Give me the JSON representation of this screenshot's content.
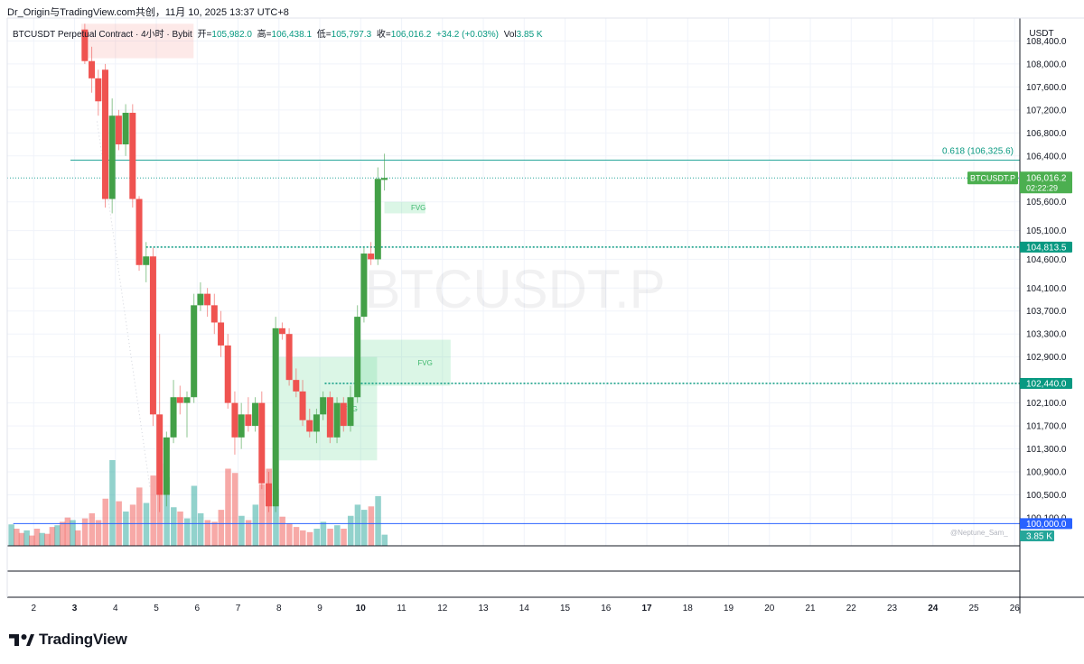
{
  "header": {
    "title": "Dr_Origin与TradingView.com共创，11月 10, 2025 13:37 UTC+8"
  },
  "legend": {
    "symbol": "BTCUSDT Perpetual Contract · 4小时 · Bybit",
    "open_label": "开=",
    "open": "105,982.0",
    "high_label": "高=",
    "high": "106,438.1",
    "low_label": "低=",
    "low": "105,797.3",
    "close_label": "收=",
    "close": "106,016.2",
    "change": "+34.2 (+0.03%)",
    "vol_label": "Vol",
    "vol": "3.85 K"
  },
  "watermark": "BTCUSDT.P",
  "credit": "@Neptune_Sam_",
  "logo": {
    "text": "TradingView"
  },
  "colors": {
    "up": "#26a69a",
    "down": "#ef5350",
    "fvg": "#4cd080",
    "support": "#089981",
    "round": "#2962ff"
  },
  "chart_data": {
    "type": "candlestick",
    "title": "BTCUSDT Perpetual Contract · 4小时 · Bybit",
    "y_unit": "USDT",
    "ylim": [
      99700,
      108700
    ],
    "y_ticks": [
      "108,400.0",
      "108,000.0",
      "107,600.0",
      "107,200.0",
      "106,800.0",
      "106,400.0",
      "105,600.0",
      "105,100.0",
      "104,600.0",
      "104,100.0",
      "103,700.0",
      "103,300.0",
      "102,900.0",
      "102,100.0",
      "101,700.0",
      "101,300.0",
      "100,900.0",
      "100,500.0",
      "100,100.0"
    ],
    "x_ticks": [
      {
        "label": "2",
        "bold": false
      },
      {
        "label": "3",
        "bold": true
      },
      {
        "label": "4",
        "bold": false
      },
      {
        "label": "5",
        "bold": false
      },
      {
        "label": "6",
        "bold": false
      },
      {
        "label": "7",
        "bold": false
      },
      {
        "label": "8",
        "bold": false
      },
      {
        "label": "9",
        "bold": false
      },
      {
        "label": "10",
        "bold": true
      },
      {
        "label": "11",
        "bold": false
      },
      {
        "label": "12",
        "bold": false
      },
      {
        "label": "13",
        "bold": false
      },
      {
        "label": "14",
        "bold": false
      },
      {
        "label": "15",
        "bold": false
      },
      {
        "label": "16",
        "bold": false
      },
      {
        "label": "17",
        "bold": true
      },
      {
        "label": "18",
        "bold": false
      },
      {
        "label": "19",
        "bold": false
      },
      {
        "label": "20",
        "bold": false
      },
      {
        "label": "21",
        "bold": false
      },
      {
        "label": "22",
        "bold": false
      },
      {
        "label": "23",
        "bold": false
      },
      {
        "label": "24",
        "bold": true
      },
      {
        "label": "25",
        "bold": false
      },
      {
        "label": "26",
        "bold": false
      }
    ],
    "candles": [
      {
        "t": 3.25,
        "o": 108600,
        "h": 108700,
        "l": 108000,
        "c": 108050
      },
      {
        "t": 3.42,
        "o": 108050,
        "h": 108300,
        "l": 107500,
        "c": 107750
      },
      {
        "t": 3.58,
        "o": 107750,
        "h": 107900,
        "l": 107100,
        "c": 107350
      },
      {
        "t": 3.75,
        "o": 107900,
        "h": 108000,
        "l": 105500,
        "c": 105650
      },
      {
        "t": 3.92,
        "o": 105650,
        "h": 107400,
        "l": 105400,
        "c": 107100
      },
      {
        "t": 4.08,
        "o": 107100,
        "h": 107200,
        "l": 106500,
        "c": 106600
      },
      {
        "t": 4.25,
        "o": 106600,
        "h": 107300,
        "l": 106400,
        "c": 107150
      },
      {
        "t": 4.42,
        "o": 107150,
        "h": 107300,
        "l": 105500,
        "c": 105650
      },
      {
        "t": 4.58,
        "o": 105650,
        "h": 105700,
        "l": 104400,
        "c": 104500
      },
      {
        "t": 4.75,
        "o": 104500,
        "h": 104900,
        "l": 104200,
        "c": 104650
      },
      {
        "t": 4.92,
        "o": 104650,
        "h": 104800,
        "l": 101700,
        "c": 101900
      },
      {
        "t": 5.08,
        "o": 101900,
        "h": 103300,
        "l": 100200,
        "c": 100500
      },
      {
        "t": 5.25,
        "o": 100500,
        "h": 101600,
        "l": 100300,
        "c": 101500
      },
      {
        "t": 5.42,
        "o": 101500,
        "h": 102500,
        "l": 101400,
        "c": 102200
      },
      {
        "t": 5.58,
        "o": 102200,
        "h": 102400,
        "l": 101900,
        "c": 102100
      },
      {
        "t": 5.75,
        "o": 102100,
        "h": 102300,
        "l": 101500,
        "c": 102200
      },
      {
        "t": 5.92,
        "o": 102200,
        "h": 104000,
        "l": 102100,
        "c": 103800
      },
      {
        "t": 6.08,
        "o": 103800,
        "h": 104200,
        "l": 103700,
        "c": 104000
      },
      {
        "t": 6.25,
        "o": 104000,
        "h": 104100,
        "l": 103600,
        "c": 103800
      },
      {
        "t": 6.42,
        "o": 103800,
        "h": 104000,
        "l": 103300,
        "c": 103500
      },
      {
        "t": 6.58,
        "o": 103500,
        "h": 103700,
        "l": 102900,
        "c": 103100
      },
      {
        "t": 6.75,
        "o": 103100,
        "h": 103300,
        "l": 102000,
        "c": 102100
      },
      {
        "t": 6.92,
        "o": 102100,
        "h": 102300,
        "l": 101200,
        "c": 101500
      },
      {
        "t": 7.08,
        "o": 101500,
        "h": 102100,
        "l": 101300,
        "c": 101900
      },
      {
        "t": 7.25,
        "o": 101900,
        "h": 102200,
        "l": 101600,
        "c": 101700
      },
      {
        "t": 7.42,
        "o": 101700,
        "h": 102200,
        "l": 101600,
        "c": 102100
      },
      {
        "t": 7.58,
        "o": 102100,
        "h": 102300,
        "l": 100600,
        "c": 100700
      },
      {
        "t": 7.75,
        "o": 100700,
        "h": 100900,
        "l": 100200,
        "c": 100300
      },
      {
        "t": 7.92,
        "o": 100300,
        "h": 103600,
        "l": 100200,
        "c": 103400
      },
      {
        "t": 8.08,
        "o": 103400,
        "h": 103500,
        "l": 103200,
        "c": 103300
      },
      {
        "t": 8.25,
        "o": 103300,
        "h": 103400,
        "l": 102400,
        "c": 102500
      },
      {
        "t": 8.42,
        "o": 102500,
        "h": 102700,
        "l": 102200,
        "c": 102300
      },
      {
        "t": 8.58,
        "o": 102300,
        "h": 102500,
        "l": 101700,
        "c": 101800
      },
      {
        "t": 8.75,
        "o": 101800,
        "h": 102000,
        "l": 101500,
        "c": 101600
      },
      {
        "t": 8.92,
        "o": 101600,
        "h": 102000,
        "l": 101400,
        "c": 101900
      },
      {
        "t": 9.08,
        "o": 101900,
        "h": 102300,
        "l": 101800,
        "c": 102200
      },
      {
        "t": 9.25,
        "o": 102200,
        "h": 102300,
        "l": 101400,
        "c": 101500
      },
      {
        "t": 9.42,
        "o": 101500,
        "h": 102200,
        "l": 101400,
        "c": 102100
      },
      {
        "t": 9.58,
        "o": 102100,
        "h": 102200,
        "l": 101600,
        "c": 101700
      },
      {
        "t": 9.75,
        "o": 101700,
        "h": 102400,
        "l": 101600,
        "c": 102200
      },
      {
        "t": 9.92,
        "o": 102200,
        "h": 103800,
        "l": 102100,
        "c": 103600
      },
      {
        "t": 10.08,
        "o": 103600,
        "h": 104800,
        "l": 103500,
        "c": 104700
      },
      {
        "t": 10.25,
        "o": 104700,
        "h": 104900,
        "l": 104500,
        "c": 104600
      },
      {
        "t": 10.42,
        "o": 104600,
        "h": 106200,
        "l": 104500,
        "c": 106000
      },
      {
        "t": 10.58,
        "o": 105982,
        "h": 106438.1,
        "l": 105797.3,
        "c": 106016.2
      }
    ],
    "volumes": [
      {
        "t": 3.25,
        "v": 0.32
      },
      {
        "t": 3.42,
        "v": 0.38
      },
      {
        "t": 3.58,
        "v": 0.3
      },
      {
        "t": 3.75,
        "v": 0.55
      },
      {
        "t": 3.92,
        "v": 1.0
      },
      {
        "t": 4.08,
        "v": 0.52
      },
      {
        "t": 4.25,
        "v": 0.4
      },
      {
        "t": 4.42,
        "v": 0.48
      },
      {
        "t": 4.58,
        "v": 0.68
      },
      {
        "t": 4.75,
        "v": 0.5
      },
      {
        "t": 4.92,
        "v": 0.82
      },
      {
        "t": 5.08,
        "v": 0.96
      },
      {
        "t": 5.25,
        "v": 0.8
      },
      {
        "t": 5.42,
        "v": 0.45
      },
      {
        "t": 5.58,
        "v": 0.4
      },
      {
        "t": 5.75,
        "v": 0.32
      },
      {
        "t": 5.92,
        "v": 0.7
      },
      {
        "t": 6.08,
        "v": 0.38
      },
      {
        "t": 6.25,
        "v": 0.3
      },
      {
        "t": 6.42,
        "v": 0.28
      },
      {
        "t": 6.58,
        "v": 0.42
      },
      {
        "t": 6.75,
        "v": 0.9
      },
      {
        "t": 6.92,
        "v": 0.85
      },
      {
        "t": 7.08,
        "v": 0.35
      },
      {
        "t": 7.25,
        "v": 0.3
      },
      {
        "t": 7.42,
        "v": 0.48
      },
      {
        "t": 7.58,
        "v": 0.72
      },
      {
        "t": 7.75,
        "v": 0.9
      },
      {
        "t": 7.92,
        "v": 0.66
      },
      {
        "t": 8.08,
        "v": 0.34
      },
      {
        "t": 8.25,
        "v": 0.26
      },
      {
        "t": 8.42,
        "v": 0.22
      },
      {
        "t": 8.58,
        "v": 0.18
      },
      {
        "t": 8.75,
        "v": 0.16
      },
      {
        "t": 8.92,
        "v": 0.2
      },
      {
        "t": 9.08,
        "v": 0.28
      },
      {
        "t": 9.25,
        "v": 0.2
      },
      {
        "t": 9.42,
        "v": 0.24
      },
      {
        "t": 9.58,
        "v": 0.2
      },
      {
        "t": 9.75,
        "v": 0.35
      },
      {
        "t": 9.92,
        "v": 0.48
      },
      {
        "t": 10.08,
        "v": 0.42
      },
      {
        "t": 10.25,
        "v": 0.46
      },
      {
        "t": 10.42,
        "v": 0.58
      },
      {
        "t": 10.58,
        "v": 0.13
      }
    ],
    "levels": [
      {
        "label": "0.618 (106,325.6)",
        "value": 106325.6,
        "style": "solid",
        "from_t": 2.9
      },
      {
        "label": "104,813.5",
        "value": 104813.5,
        "style": "dotted",
        "from_t": 4.75
      },
      {
        "label": "102,440.0",
        "value": 102440.0,
        "style": "dotted",
        "from_t": 9.12
      },
      {
        "label": "100,000.0",
        "value": 100000.0,
        "style": "solid-blue",
        "from_t": 1.5
      }
    ],
    "last_price": {
      "symbol": "BTCUSDT.P",
      "value": "106,016.2",
      "countdown": "02:22:29",
      "v": 106016.2
    },
    "volume_label": "3.85 K",
    "fvg_zones": [
      {
        "label": "FVG",
        "t0": 10.58,
        "t1": 11.58,
        "top": 105600,
        "bottom": 105400
      },
      {
        "label": "FVG",
        "t0": 9.9,
        "t1": 12.2,
        "top": 103200,
        "bottom": 102400
      },
      {
        "label": "FVG",
        "t0": 8.0,
        "t1": 10.4,
        "top": 102900,
        "bottom": 101100
      }
    ],
    "supply_zone": {
      "t0": 3.25,
      "t1": 6.0,
      "top": 108700,
      "bottom": 108100
    },
    "trend_line": {
      "t0": 3.55,
      "v0": 107000,
      "t1": 4.85,
      "v1": 100600
    }
  }
}
